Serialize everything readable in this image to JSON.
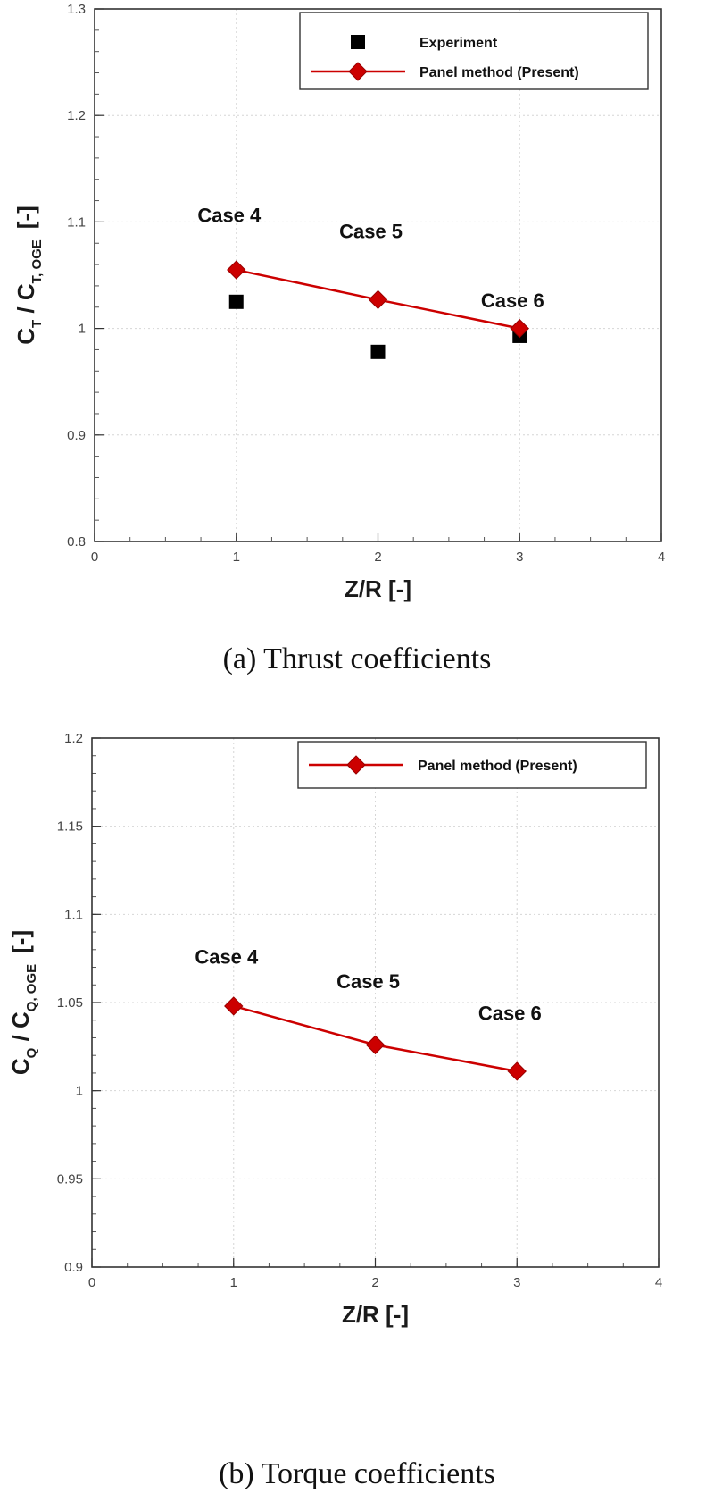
{
  "chart_data": [
    {
      "type": "scatter",
      "title": "",
      "xlabel": "Z/R [-]",
      "ylabel": {
        "main": "C",
        "sub1": "T",
        "sep": " / C",
        "sub2": "T, OGE",
        "unit": "[-]"
      },
      "xlim": [
        0,
        4
      ],
      "ylim": [
        0.8,
        1.3
      ],
      "xticks": [
        "0",
        "1",
        "2",
        "3",
        "4"
      ],
      "yticks": [
        "0.8",
        "0.9",
        "1",
        "1.1",
        "1.2",
        "1.3"
      ],
      "grid": true,
      "legend_position": "top-right",
      "series": [
        {
          "name": "Experiment",
          "kind": "scatter",
          "marker": "square",
          "color": "#000000",
          "x": [
            1,
            2,
            3
          ],
          "y": [
            1.025,
            0.978,
            0.993
          ]
        },
        {
          "name": "Panel method (Present)",
          "kind": "line",
          "marker": "diamond",
          "color": "#cc0000",
          "x": [
            1,
            2,
            3
          ],
          "y": [
            1.055,
            1.027,
            1.0
          ]
        }
      ],
      "annotations": [
        {
          "text": "Case 4",
          "x": 0.95,
          "y": 1.1
        },
        {
          "text": "Case 5",
          "x": 1.95,
          "y": 1.085
        },
        {
          "text": "Case 6",
          "x": 2.95,
          "y": 1.02
        }
      ],
      "caption": "(a)  Thrust  coefficients"
    },
    {
      "type": "line",
      "title": "",
      "xlabel": "Z/R [-]",
      "ylabel": {
        "main": "C",
        "sub1": "Q",
        "sep": " / C",
        "sub2": "Q, OGE",
        "unit": "[-]"
      },
      "xlim": [
        0,
        4
      ],
      "ylim": [
        0.9,
        1.2
      ],
      "xticks": [
        "0",
        "1",
        "2",
        "3",
        "4"
      ],
      "yticks": [
        "0.9",
        "0.95",
        "1",
        "1.05",
        "1.1",
        "1.15",
        "1.2"
      ],
      "grid": true,
      "legend_position": "top-right",
      "series": [
        {
          "name": "Panel method (Present)",
          "kind": "line",
          "marker": "diamond",
          "color": "#cc0000",
          "x": [
            1,
            2,
            3
          ],
          "y": [
            1.048,
            1.026,
            1.011
          ]
        }
      ],
      "annotations": [
        {
          "text": "Case 4",
          "x": 0.95,
          "y": 1.072
        },
        {
          "text": "Case 5",
          "x": 1.95,
          "y": 1.058
        },
        {
          "text": "Case 6",
          "x": 2.95,
          "y": 1.04
        }
      ],
      "caption": "(b)  Torque  coefficients"
    }
  ]
}
